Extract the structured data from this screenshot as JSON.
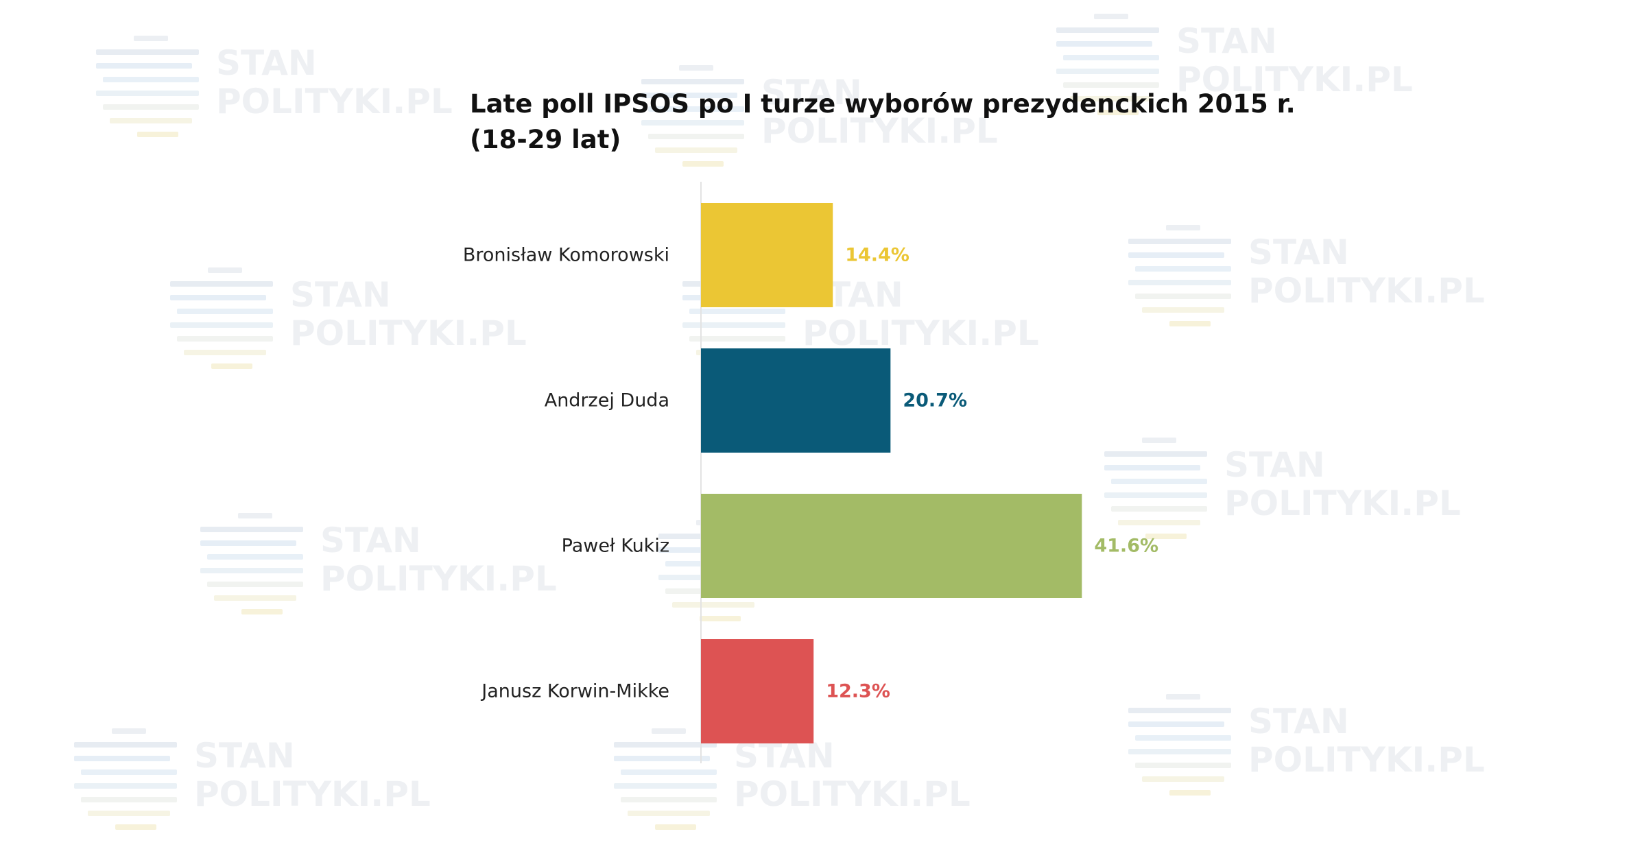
{
  "title": "Late poll IPSOS po I turze wyborów prezydenckich 2015 r. (18-29 lat)",
  "watermark": {
    "line1": "STAN",
    "line2": "POLITYKI.PL"
  },
  "chart_data": {
    "type": "bar",
    "orientation": "horizontal",
    "title": "Late poll IPSOS po I turze wyborów prezydenckich 2015 r. (18-29 lat)",
    "categories": [
      "Bronisław Komorowski",
      "Andrzej Duda",
      "Paweł Kukiz",
      "Janusz Korwin-Mikke"
    ],
    "values": [
      14.4,
      20.7,
      41.6,
      12.3
    ],
    "data_labels": [
      "14.4%",
      "20.7%",
      "41.6%",
      "12.3%"
    ],
    "colors": [
      "#ebc634",
      "#0a5a78",
      "#a3bb66",
      "#dd5353"
    ],
    "unit": "%",
    "xlabel": "",
    "ylabel": "",
    "xlim": [
      0,
      100
    ],
    "grid": false,
    "legend": "none"
  }
}
